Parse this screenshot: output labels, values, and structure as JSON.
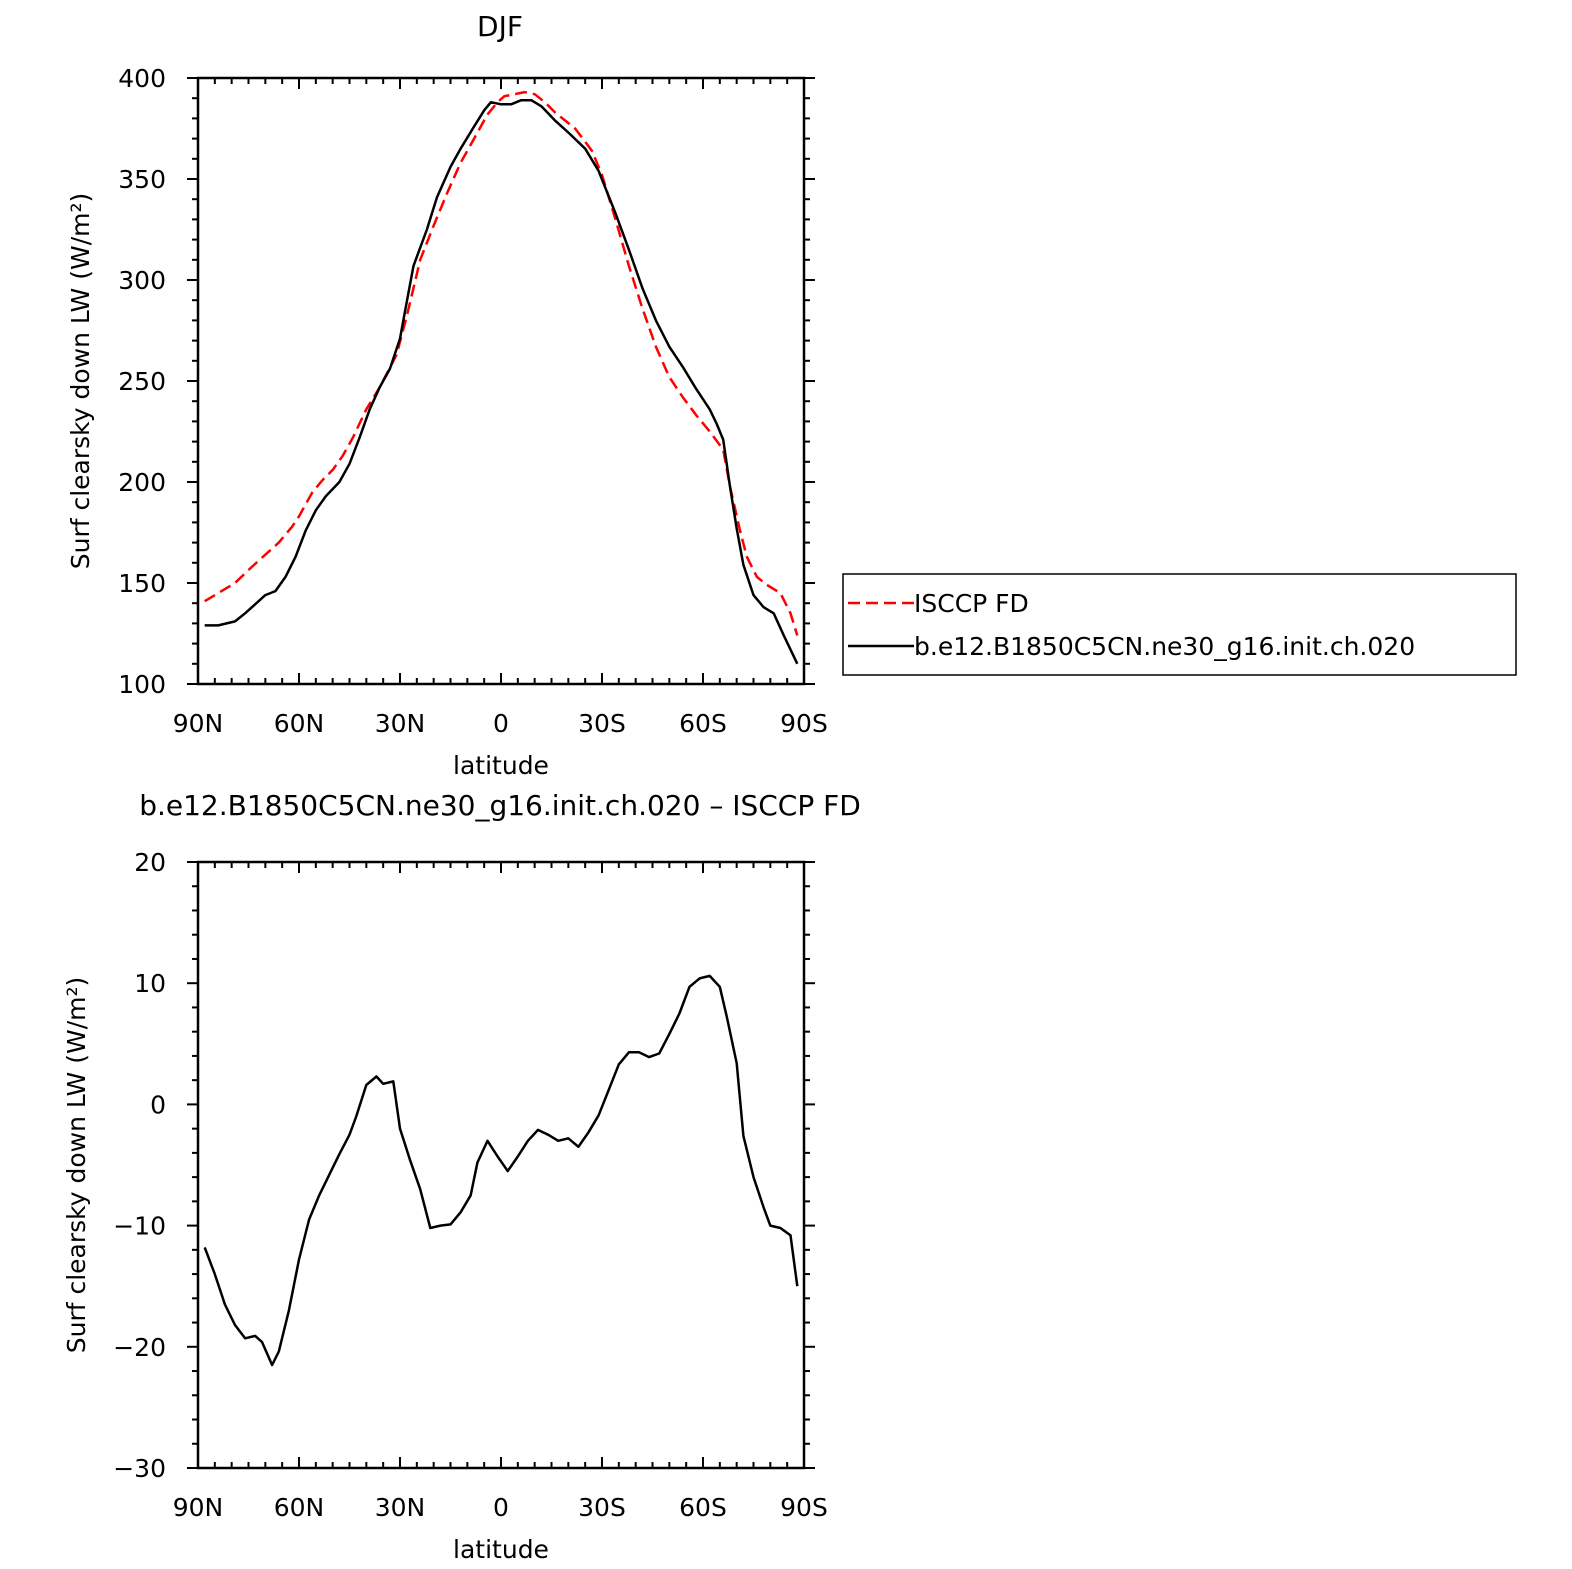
{
  "chart_data": [
    {
      "type": "line",
      "title": "DJF",
      "xlabel": "latitude",
      "ylabel": "Surf clearsky down LW (W/m²)",
      "xlim": [
        90,
        -90
      ],
      "ylim": [
        100,
        400
      ],
      "xticks": [
        {
          "v": 90,
          "label": "90N"
        },
        {
          "v": 60,
          "label": "60N"
        },
        {
          "v": 30,
          "label": "30N"
        },
        {
          "v": 0,
          "label": "0"
        },
        {
          "v": -30,
          "label": "30S"
        },
        {
          "v": -60,
          "label": "60S"
        },
        {
          "v": -90,
          "label": "90S"
        }
      ],
      "yticks": [
        {
          "v": 100,
          "label": "100"
        },
        {
          "v": 150,
          "label": "150"
        },
        {
          "v": 200,
          "label": "200"
        },
        {
          "v": 250,
          "label": "250"
        },
        {
          "v": 300,
          "label": "300"
        },
        {
          "v": 350,
          "label": "350"
        },
        {
          "v": 400,
          "label": "400"
        }
      ],
      "grid": false,
      "legend_position": "right",
      "series": [
        {
          "name": "ISCCP FD",
          "color": "#ff0000",
          "dash": true,
          "points": [
            [
              88,
              141
            ],
            [
              82,
              147
            ],
            [
              79,
              150
            ],
            [
              74,
              158
            ],
            [
              70,
              164
            ],
            [
              66,
              170
            ],
            [
              62,
              178
            ],
            [
              60,
              183
            ],
            [
              58,
              189
            ],
            [
              56,
              195
            ],
            [
              53,
              201
            ],
            [
              50,
              206
            ],
            [
              47,
              213
            ],
            [
              44,
              222
            ],
            [
              40,
              236
            ],
            [
              36,
              247
            ],
            [
              31,
              263
            ],
            [
              28,
              282
            ],
            [
              26,
              296
            ],
            [
              24,
              310
            ],
            [
              20,
              327
            ],
            [
              16,
              343
            ],
            [
              12,
              358
            ],
            [
              8,
              370
            ],
            [
              4,
              382
            ],
            [
              1,
              388
            ],
            [
              -1,
              391
            ],
            [
              -4,
              392
            ],
            [
              -7,
              393
            ],
            [
              -10,
              392
            ],
            [
              -13,
              388
            ],
            [
              -16,
              383
            ],
            [
              -22,
              375
            ],
            [
              -27,
              364
            ],
            [
              -30,
              352
            ],
            [
              -34,
              330
            ],
            [
              -38,
              307
            ],
            [
              -42,
              286
            ],
            [
              -46,
              267
            ],
            [
              -50,
              252
            ],
            [
              -54,
              242
            ],
            [
              -58,
              233
            ],
            [
              -62,
              225
            ],
            [
              -66,
              216
            ],
            [
              -68,
              198
            ],
            [
              -71,
              176
            ],
            [
              -73,
              163
            ],
            [
              -76,
              153
            ],
            [
              -79,
              149
            ],
            [
              -83,
              145
            ],
            [
              -86,
              135
            ],
            [
              -88,
              124
            ]
          ]
        },
        {
          "name": "b.e12.B1850C5CN.ne30_g16.init.ch.020",
          "color": "#000000",
          "dash": false,
          "points": [
            [
              88,
              129
            ],
            [
              84,
              129
            ],
            [
              79,
              131
            ],
            [
              76,
              135
            ],
            [
              72,
              141
            ],
            [
              70,
              144
            ],
            [
              67,
              146
            ],
            [
              64,
              153
            ],
            [
              61,
              163
            ],
            [
              58,
              176
            ],
            [
              55,
              186
            ],
            [
              52,
              193
            ],
            [
              48,
              200
            ],
            [
              45,
              209
            ],
            [
              42,
              222
            ],
            [
              39,
              236
            ],
            [
              36,
              247
            ],
            [
              33,
              256
            ],
            [
              30,
              271
            ],
            [
              28,
              289
            ],
            [
              26,
              307
            ],
            [
              22,
              325
            ],
            [
              19,
              341
            ],
            [
              15,
              356
            ],
            [
              12,
              365
            ],
            [
              8,
              376
            ],
            [
              5,
              384
            ],
            [
              3,
              388
            ],
            [
              0,
              387
            ],
            [
              -3,
              387
            ],
            [
              -6,
              389
            ],
            [
              -9,
              389
            ],
            [
              -12,
              386
            ],
            [
              -16,
              379
            ],
            [
              -20,
              373
            ],
            [
              -25,
              365
            ],
            [
              -29,
              354
            ],
            [
              -34,
              333
            ],
            [
              -38,
              315
            ],
            [
              -42,
              296
            ],
            [
              -46,
              280
            ],
            [
              -50,
              267
            ],
            [
              -54,
              257
            ],
            [
              -58,
              246
            ],
            [
              -62,
              236
            ],
            [
              -64,
              229
            ],
            [
              -66,
              221
            ],
            [
              -68,
              198
            ],
            [
              -70,
              177
            ],
            [
              -72,
              159
            ],
            [
              -75,
              144
            ],
            [
              -78,
              138
            ],
            [
              -81,
              135
            ],
            [
              -84,
              124
            ],
            [
              -88,
              110
            ]
          ]
        }
      ]
    },
    {
      "type": "line",
      "title": "b.e12.B1850C5CN.ne30_g16.init.ch.020 – ISCCP FD",
      "xlabel": "latitude",
      "ylabel": "Surf clearsky down LW (W/m²)",
      "xlim": [
        90,
        -90
      ],
      "ylim": [
        -30,
        20
      ],
      "xticks": [
        {
          "v": 90,
          "label": "90N"
        },
        {
          "v": 60,
          "label": "60N"
        },
        {
          "v": 30,
          "label": "30N"
        },
        {
          "v": 0,
          "label": "0"
        },
        {
          "v": -30,
          "label": "30S"
        },
        {
          "v": -60,
          "label": "60S"
        },
        {
          "v": -90,
          "label": "90S"
        }
      ],
      "yticks": [
        {
          "v": -30,
          "label": "−30"
        },
        {
          "v": -20,
          "label": "−20"
        },
        {
          "v": -10,
          "label": "−10"
        },
        {
          "v": 0,
          "label": "0"
        },
        {
          "v": 10,
          "label": "10"
        },
        {
          "v": 20,
          "label": "20"
        }
      ],
      "grid": false,
      "series": [
        {
          "color": "#000000",
          "dash": false,
          "points": [
            [
              88,
              -11.8
            ],
            [
              85,
              -14.0
            ],
            [
              82,
              -16.5
            ],
            [
              79,
              -18.2
            ],
            [
              76,
              -19.3
            ],
            [
              73,
              -19.1
            ],
            [
              71,
              -19.6
            ],
            [
              68,
              -21.5
            ],
            [
              66,
              -20.4
            ],
            [
              63,
              -17.0
            ],
            [
              60,
              -12.8
            ],
            [
              57,
              -9.5
            ],
            [
              54,
              -7.5
            ],
            [
              51,
              -5.8
            ],
            [
              48,
              -4.1
            ],
            [
              45,
              -2.5
            ],
            [
              43,
              -1.0
            ],
            [
              40,
              1.6
            ],
            [
              37,
              2.3
            ],
            [
              35,
              1.7
            ],
            [
              32,
              1.9
            ],
            [
              30,
              -2.0
            ],
            [
              27,
              -4.6
            ],
            [
              24,
              -7.0
            ],
            [
              21,
              -10.2
            ],
            [
              18,
              -10.0
            ],
            [
              15,
              -9.9
            ],
            [
              12,
              -8.9
            ],
            [
              9,
              -7.5
            ],
            [
              7,
              -4.8
            ],
            [
              4,
              -3.0
            ],
            [
              1,
              -4.3
            ],
            [
              -2,
              -5.5
            ],
            [
              -5,
              -4.3
            ],
            [
              -8,
              -3.0
            ],
            [
              -11,
              -2.1
            ],
            [
              -14,
              -2.5
            ],
            [
              -17,
              -3.0
            ],
            [
              -20,
              -2.8
            ],
            [
              -23,
              -3.5
            ],
            [
              -26,
              -2.3
            ],
            [
              -29,
              -0.9
            ],
            [
              -32,
              1.2
            ],
            [
              -35,
              3.3
            ],
            [
              -38,
              4.3
            ],
            [
              -41,
              4.3
            ],
            [
              -44,
              3.9
            ],
            [
              -47,
              4.2
            ],
            [
              -50,
              5.8
            ],
            [
              -53,
              7.5
            ],
            [
              -56,
              9.7
            ],
            [
              -59,
              10.4
            ],
            [
              -62,
              10.6
            ],
            [
              -65,
              9.7
            ],
            [
              -67,
              7.3
            ],
            [
              -70,
              3.4
            ],
            [
              -72,
              -2.6
            ],
            [
              -75,
              -6.0
            ],
            [
              -78,
              -8.5
            ],
            [
              -80,
              -10.0
            ],
            [
              -83,
              -10.2
            ],
            [
              -86,
              -10.8
            ],
            [
              -88,
              -15.0
            ]
          ]
        }
      ]
    }
  ]
}
